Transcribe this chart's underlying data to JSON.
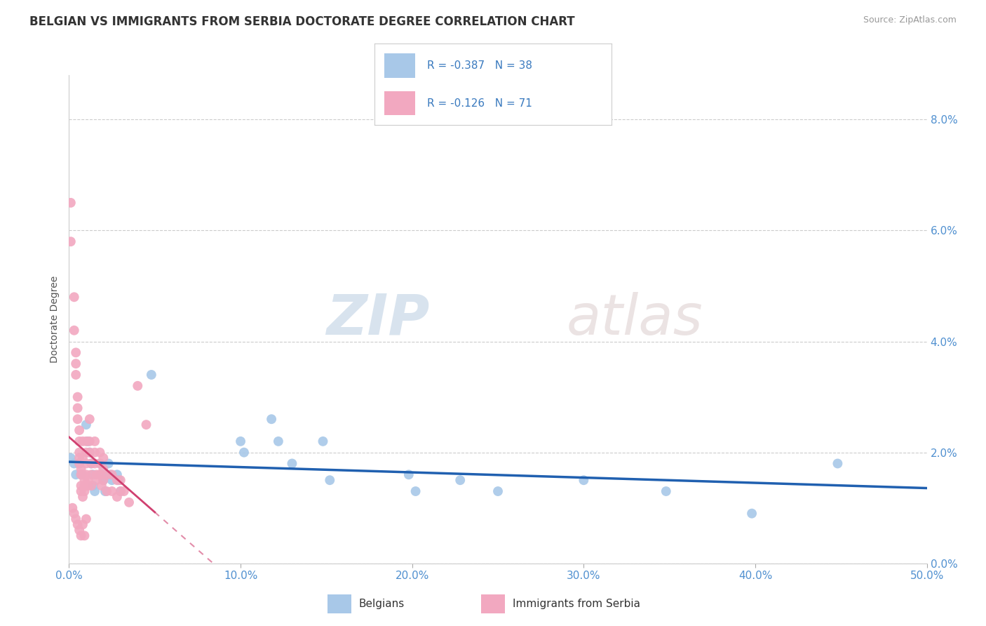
{
  "title": "BELGIAN VS IMMIGRANTS FROM SERBIA DOCTORATE DEGREE CORRELATION CHART",
  "source": "Source: ZipAtlas.com",
  "xlabel_ticks": [
    "0.0%",
    "10.0%",
    "20.0%",
    "30.0%",
    "40.0%",
    "50.0%"
  ],
  "ylabel_right_ticks": [
    "0.0%",
    "2.0%",
    "4.0%",
    "6.0%",
    "8.0%"
  ],
  "xlim": [
    0.0,
    0.5
  ],
  "ylim": [
    0.0,
    0.088
  ],
  "watermark_zip": "ZIP",
  "watermark_atlas": "atlas",
  "legend_line1": "R = -0.387   N = 38",
  "legend_line2": "R = -0.126   N = 71",
  "belgian_color": "#a8c8e8",
  "serbia_color": "#f2a8c0",
  "belgian_line_color": "#2060b0",
  "serbia_line_color": "#d04070",
  "belgian_scatter": [
    [
      0.001,
      0.019
    ],
    [
      0.003,
      0.018
    ],
    [
      0.004,
      0.016
    ],
    [
      0.006,
      0.018
    ],
    [
      0.007,
      0.016
    ],
    [
      0.01,
      0.025
    ],
    [
      0.011,
      0.022
    ],
    [
      0.012,
      0.02
    ],
    [
      0.013,
      0.018
    ],
    [
      0.014,
      0.016
    ],
    [
      0.014,
      0.014
    ],
    [
      0.015,
      0.013
    ],
    [
      0.018,
      0.018
    ],
    [
      0.019,
      0.016
    ],
    [
      0.02,
      0.015
    ],
    [
      0.021,
      0.013
    ],
    [
      0.023,
      0.018
    ],
    [
      0.024,
      0.016
    ],
    [
      0.025,
      0.015
    ],
    [
      0.028,
      0.016
    ],
    [
      0.029,
      0.015
    ],
    [
      0.03,
      0.013
    ],
    [
      0.048,
      0.034
    ],
    [
      0.1,
      0.022
    ],
    [
      0.102,
      0.02
    ],
    [
      0.118,
      0.026
    ],
    [
      0.122,
      0.022
    ],
    [
      0.13,
      0.018
    ],
    [
      0.148,
      0.022
    ],
    [
      0.152,
      0.015
    ],
    [
      0.198,
      0.016
    ],
    [
      0.202,
      0.013
    ],
    [
      0.228,
      0.015
    ],
    [
      0.25,
      0.013
    ],
    [
      0.3,
      0.015
    ],
    [
      0.348,
      0.013
    ],
    [
      0.398,
      0.009
    ],
    [
      0.448,
      0.018
    ]
  ],
  "serbia_scatter": [
    [
      0.001,
      0.065
    ],
    [
      0.001,
      0.058
    ],
    [
      0.003,
      0.048
    ],
    [
      0.003,
      0.042
    ],
    [
      0.004,
      0.038
    ],
    [
      0.004,
      0.036
    ],
    [
      0.004,
      0.034
    ],
    [
      0.005,
      0.03
    ],
    [
      0.005,
      0.028
    ],
    [
      0.005,
      0.026
    ],
    [
      0.006,
      0.024
    ],
    [
      0.006,
      0.022
    ],
    [
      0.006,
      0.02
    ],
    [
      0.006,
      0.019
    ],
    [
      0.006,
      0.018
    ],
    [
      0.007,
      0.017
    ],
    [
      0.007,
      0.016
    ],
    [
      0.007,
      0.014
    ],
    [
      0.007,
      0.013
    ],
    [
      0.008,
      0.012
    ],
    [
      0.008,
      0.022
    ],
    [
      0.008,
      0.019
    ],
    [
      0.008,
      0.016
    ],
    [
      0.009,
      0.015
    ],
    [
      0.009,
      0.014
    ],
    [
      0.009,
      0.013
    ],
    [
      0.01,
      0.022
    ],
    [
      0.01,
      0.02
    ],
    [
      0.01,
      0.018
    ],
    [
      0.01,
      0.016
    ],
    [
      0.011,
      0.015
    ],
    [
      0.011,
      0.014
    ],
    [
      0.012,
      0.026
    ],
    [
      0.012,
      0.022
    ],
    [
      0.012,
      0.02
    ],
    [
      0.013,
      0.018
    ],
    [
      0.013,
      0.016
    ],
    [
      0.013,
      0.014
    ],
    [
      0.015,
      0.022
    ],
    [
      0.015,
      0.02
    ],
    [
      0.015,
      0.018
    ],
    [
      0.016,
      0.016
    ],
    [
      0.016,
      0.015
    ],
    [
      0.018,
      0.02
    ],
    [
      0.018,
      0.018
    ],
    [
      0.018,
      0.016
    ],
    [
      0.019,
      0.014
    ],
    [
      0.02,
      0.019
    ],
    [
      0.02,
      0.017
    ],
    [
      0.02,
      0.015
    ],
    [
      0.022,
      0.016
    ],
    [
      0.022,
      0.013
    ],
    [
      0.025,
      0.016
    ],
    [
      0.025,
      0.013
    ],
    [
      0.028,
      0.015
    ],
    [
      0.028,
      0.012
    ],
    [
      0.03,
      0.015
    ],
    [
      0.03,
      0.013
    ],
    [
      0.032,
      0.013
    ],
    [
      0.035,
      0.011
    ],
    [
      0.04,
      0.032
    ],
    [
      0.045,
      0.025
    ],
    [
      0.002,
      0.01
    ],
    [
      0.003,
      0.009
    ],
    [
      0.004,
      0.008
    ],
    [
      0.005,
      0.007
    ],
    [
      0.006,
      0.006
    ],
    [
      0.007,
      0.005
    ],
    [
      0.008,
      0.007
    ],
    [
      0.009,
      0.005
    ],
    [
      0.01,
      0.008
    ]
  ],
  "ylabel": "Doctorate Degree",
  "title_fontsize": 12,
  "tick_fontsize": 11,
  "label_fontsize": 10,
  "legend_fontsize": 11
}
